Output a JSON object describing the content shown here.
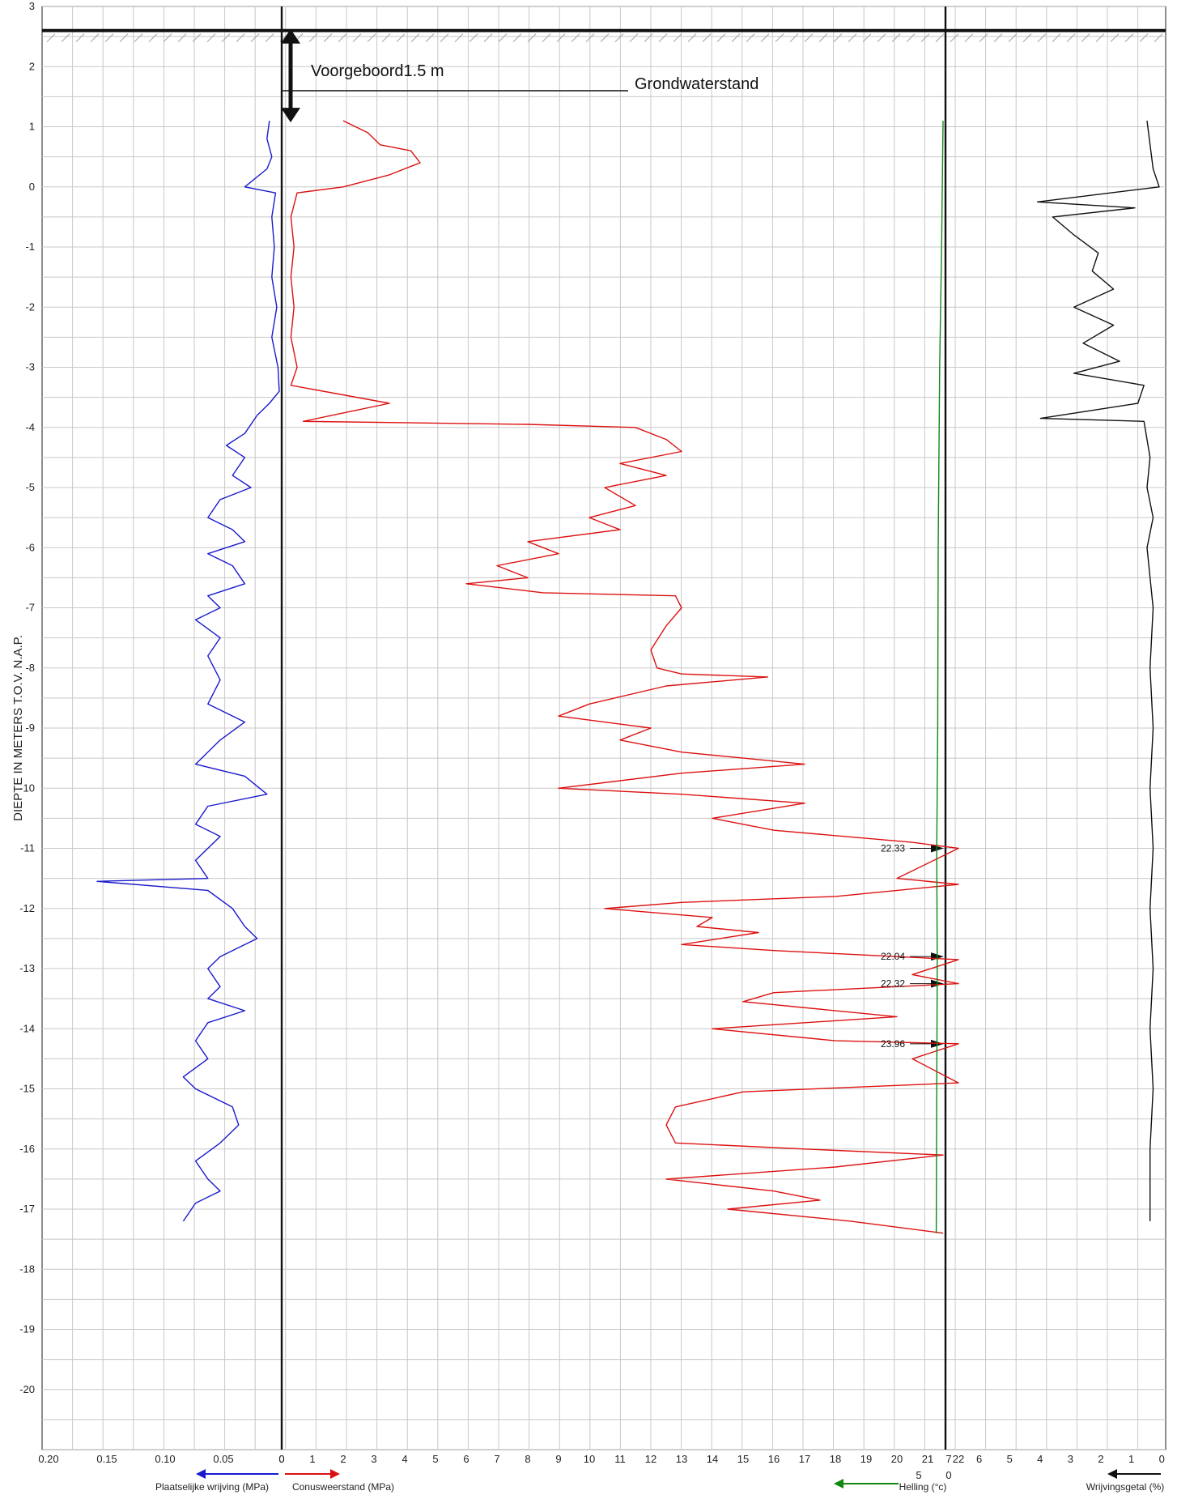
{
  "chart_data": {
    "type": "line",
    "y_axis": {
      "label": "DIEPTE IN METERS T.O.V.   N.A.P.",
      "ylim": [
        -21,
        3
      ],
      "ticks": [
        3,
        2,
        1,
        0,
        -1,
        -2,
        -3,
        -4,
        -5,
        -6,
        -7,
        -8,
        -9,
        -10,
        -11,
        -12,
        -13,
        -14,
        -15,
        -16,
        -17,
        -18,
        -19,
        -20
      ]
    },
    "surface_level": 2.6,
    "predrill": {
      "label": "Voorgeboord1.5    m",
      "top": 2.6,
      "bottom": 1.1
    },
    "groundwater": {
      "label": "Grondwaterstand",
      "depth": 1.6
    },
    "axis_labels": {
      "friction": "Plaatselijke wrijving (MPa)",
      "cone": "Conusweerstand (MPa)",
      "inclination": "Helling (°c)",
      "ratio": "Wrijvingsgetal (%)"
    },
    "friction_ticks": [
      "0.20",
      "0.15",
      "0.10",
      "0.05",
      "0"
    ],
    "cone_ticks": [
      "0",
      "1",
      "2",
      "3",
      "4",
      "5",
      "6",
      "7",
      "8",
      "9",
      "10",
      "11",
      "12",
      "13",
      "14",
      "15",
      "16",
      "17",
      "18",
      "19",
      "20",
      "21",
      "22"
    ],
    "inclination_ticks": [
      "5",
      "0"
    ],
    "ratio_ticks": [
      "7",
      "6",
      "5",
      "4",
      "3",
      "2",
      "1",
      "0"
    ],
    "colors": {
      "friction": "#1a1acc",
      "cone": "#dd1111",
      "inclination": "#118811",
      "ratio": "#111111"
    },
    "series": [
      {
        "name": "Plaatselijke wrijving (MPa)",
        "color": "#1a1acc",
        "points": [
          [
            0.01,
            1.1
          ],
          [
            0.012,
            0.8
          ],
          [
            0.008,
            0.5
          ],
          [
            0.012,
            0.3
          ],
          [
            0.03,
            0.0
          ],
          [
            0.005,
            -0.1
          ],
          [
            0.008,
            -0.5
          ],
          [
            0.006,
            -1.0
          ],
          [
            0.008,
            -1.5
          ],
          [
            0.004,
            -2.0
          ],
          [
            0.008,
            -2.5
          ],
          [
            0.003,
            -3.0
          ],
          [
            0.002,
            -3.4
          ],
          [
            0.01,
            -3.6
          ],
          [
            0.02,
            -3.8
          ],
          [
            0.03,
            -4.1
          ],
          [
            0.045,
            -4.3
          ],
          [
            0.03,
            -4.5
          ],
          [
            0.04,
            -4.8
          ],
          [
            0.025,
            -5.0
          ],
          [
            0.05,
            -5.2
          ],
          [
            0.06,
            -5.5
          ],
          [
            0.04,
            -5.7
          ],
          [
            0.03,
            -5.9
          ],
          [
            0.06,
            -6.1
          ],
          [
            0.04,
            -6.3
          ],
          [
            0.03,
            -6.6
          ],
          [
            0.06,
            -6.8
          ],
          [
            0.05,
            -7.0
          ],
          [
            0.07,
            -7.2
          ],
          [
            0.05,
            -7.5
          ],
          [
            0.06,
            -7.8
          ],
          [
            0.05,
            -8.2
          ],
          [
            0.06,
            -8.6
          ],
          [
            0.03,
            -8.9
          ],
          [
            0.05,
            -9.2
          ],
          [
            0.07,
            -9.6
          ],
          [
            0.03,
            -9.8
          ],
          [
            0.012,
            -10.1
          ],
          [
            0.06,
            -10.3
          ],
          [
            0.07,
            -10.6
          ],
          [
            0.05,
            -10.8
          ],
          [
            0.07,
            -11.2
          ],
          [
            0.06,
            -11.5
          ],
          [
            0.15,
            -11.55
          ],
          [
            0.06,
            -11.7
          ],
          [
            0.04,
            -12.0
          ],
          [
            0.03,
            -12.3
          ],
          [
            0.02,
            -12.5
          ],
          [
            0.05,
            -12.8
          ],
          [
            0.06,
            -13.0
          ],
          [
            0.05,
            -13.3
          ],
          [
            0.06,
            -13.5
          ],
          [
            0.03,
            -13.7
          ],
          [
            0.06,
            -13.9
          ],
          [
            0.07,
            -14.2
          ],
          [
            0.06,
            -14.5
          ],
          [
            0.08,
            -14.8
          ],
          [
            0.07,
            -15.0
          ],
          [
            0.04,
            -15.3
          ],
          [
            0.035,
            -15.6
          ],
          [
            0.05,
            -15.9
          ],
          [
            0.07,
            -16.2
          ],
          [
            0.06,
            -16.5
          ],
          [
            0.05,
            -16.7
          ],
          [
            0.07,
            -16.9
          ],
          [
            0.08,
            -17.2
          ]
        ]
      },
      {
        "name": "Conusweerstand (MPa)",
        "color": "#dd1111",
        "points": [
          [
            2.0,
            1.1
          ],
          [
            2.8,
            0.9
          ],
          [
            3.2,
            0.7
          ],
          [
            4.2,
            0.6
          ],
          [
            4.5,
            0.4
          ],
          [
            3.5,
            0.2
          ],
          [
            2.0,
            0.0
          ],
          [
            0.5,
            -0.1
          ],
          [
            0.3,
            -0.5
          ],
          [
            0.4,
            -1.0
          ],
          [
            0.3,
            -1.5
          ],
          [
            0.4,
            -2.0
          ],
          [
            0.3,
            -2.5
          ],
          [
            0.5,
            -3.0
          ],
          [
            0.3,
            -3.3
          ],
          [
            3.5,
            -3.6
          ],
          [
            0.7,
            -3.9
          ],
          [
            8.0,
            -3.95
          ],
          [
            11.5,
            -4.0
          ],
          [
            12.5,
            -4.2
          ],
          [
            13.0,
            -4.4
          ],
          [
            11.0,
            -4.6
          ],
          [
            12.5,
            -4.8
          ],
          [
            10.5,
            -5.0
          ],
          [
            11.5,
            -5.3
          ],
          [
            10.0,
            -5.5
          ],
          [
            11.0,
            -5.7
          ],
          [
            8.0,
            -5.9
          ],
          [
            9.0,
            -6.1
          ],
          [
            7.0,
            -6.3
          ],
          [
            8.0,
            -6.5
          ],
          [
            6.0,
            -6.6
          ],
          [
            8.5,
            -6.75
          ],
          [
            12.8,
            -6.8
          ],
          [
            13.0,
            -7.0
          ],
          [
            12.5,
            -7.3
          ],
          [
            12.0,
            -7.7
          ],
          [
            12.2,
            -8.0
          ],
          [
            13.0,
            -8.1
          ],
          [
            15.8,
            -8.15
          ],
          [
            12.5,
            -8.3
          ],
          [
            10.0,
            -8.6
          ],
          [
            9.0,
            -8.8
          ],
          [
            12.0,
            -9.0
          ],
          [
            11.0,
            -9.2
          ],
          [
            13.0,
            -9.4
          ],
          [
            15.0,
            -9.5
          ],
          [
            17.0,
            -9.6
          ],
          [
            13.0,
            -9.75
          ],
          [
            9.0,
            -10.0
          ],
          [
            13.0,
            -10.1
          ],
          [
            17.0,
            -10.25
          ],
          [
            14.0,
            -10.5
          ],
          [
            16.0,
            -10.7
          ],
          [
            20.5,
            -10.9
          ],
          [
            22.0,
            -11.0
          ],
          [
            20.0,
            -11.5
          ],
          [
            22.0,
            -11.6
          ],
          [
            18.0,
            -11.8
          ],
          [
            13.0,
            -11.9
          ],
          [
            10.5,
            -12.0
          ],
          [
            14.0,
            -12.15
          ],
          [
            13.5,
            -12.3
          ],
          [
            15.5,
            -12.4
          ],
          [
            13.0,
            -12.6
          ],
          [
            16.0,
            -12.7
          ],
          [
            20.0,
            -12.8
          ],
          [
            22.0,
            -12.85
          ],
          [
            20.5,
            -13.1
          ],
          [
            22.0,
            -13.25
          ],
          [
            16.0,
            -13.4
          ],
          [
            15.0,
            -13.55
          ],
          [
            20.0,
            -13.8
          ],
          [
            14.0,
            -14.0
          ],
          [
            18.0,
            -14.2
          ],
          [
            22.0,
            -14.25
          ],
          [
            20.5,
            -14.5
          ],
          [
            22.0,
            -14.9
          ],
          [
            15.0,
            -15.05
          ],
          [
            12.8,
            -15.3
          ],
          [
            12.5,
            -15.6
          ],
          [
            12.8,
            -15.9
          ],
          [
            17.0,
            -16.0
          ],
          [
            21.5,
            -16.1
          ],
          [
            18.0,
            -16.3
          ],
          [
            12.5,
            -16.5
          ],
          [
            16.0,
            -16.7
          ],
          [
            17.5,
            -16.85
          ],
          [
            14.5,
            -17.0
          ],
          [
            18.5,
            -17.2
          ],
          [
            21.5,
            -17.4
          ]
        ]
      },
      {
        "name": "Helling (°c)",
        "color": "#118811",
        "points": [
          [
            0.5,
            1.1
          ],
          [
            0.8,
            -1.0
          ],
          [
            1.2,
            -3.0
          ],
          [
            1.5,
            -6.0
          ],
          [
            1.6,
            -9.0
          ],
          [
            1.8,
            -11.0
          ],
          [
            1.7,
            -13.0
          ],
          [
            1.8,
            -15.0
          ],
          [
            1.9,
            -17.4
          ]
        ]
      },
      {
        "name": "Wrijvingsgetal (%)",
        "color": "#111111",
        "points": [
          [
            0.4,
            1.1
          ],
          [
            0.2,
            0.3
          ],
          [
            0.0,
            0.0
          ],
          [
            4.0,
            -0.25
          ],
          [
            0.8,
            -0.35
          ],
          [
            3.5,
            -0.5
          ],
          [
            2.8,
            -0.8
          ],
          [
            2.0,
            -1.1
          ],
          [
            2.2,
            -1.4
          ],
          [
            1.5,
            -1.7
          ],
          [
            2.8,
            -2.0
          ],
          [
            1.5,
            -2.3
          ],
          [
            2.5,
            -2.6
          ],
          [
            1.3,
            -2.9
          ],
          [
            2.8,
            -3.1
          ],
          [
            0.5,
            -3.3
          ],
          [
            0.7,
            -3.6
          ],
          [
            3.9,
            -3.85
          ],
          [
            0.5,
            -3.9
          ],
          [
            0.3,
            -4.5
          ],
          [
            0.4,
            -5.0
          ],
          [
            0.2,
            -5.5
          ],
          [
            0.4,
            -6.0
          ],
          [
            0.2,
            -7.0
          ],
          [
            0.3,
            -8.0
          ],
          [
            0.2,
            -9.0
          ],
          [
            0.3,
            -10.0
          ],
          [
            0.2,
            -11.0
          ],
          [
            0.3,
            -12.0
          ],
          [
            0.2,
            -13.0
          ],
          [
            0.3,
            -14.0
          ],
          [
            0.2,
            -15.0
          ],
          [
            0.3,
            -16.0
          ],
          [
            0.3,
            -17.2
          ]
        ]
      }
    ],
    "annotations": [
      {
        "label": "22.33",
        "depth": -11.0
      },
      {
        "label": "22.04",
        "depth": -12.8
      },
      {
        "label": "22.32",
        "depth": -13.25
      },
      {
        "label": "23.96",
        "depth": -14.25
      }
    ]
  }
}
